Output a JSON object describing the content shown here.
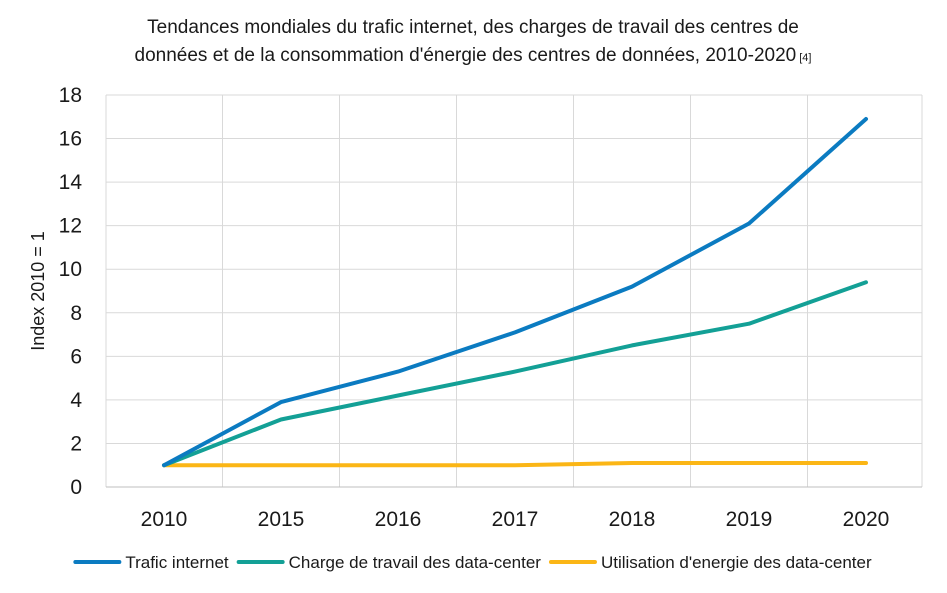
{
  "chart_data": {
    "type": "line",
    "title": {
      "line1": "Tendances mondiales du trafic internet, des charges de travail des centres de",
      "line2": "données et de la consommation d'énergie des centres de données, 2010-2020",
      "ref": "[4]"
    },
    "xlabel": "",
    "ylabel": "Index 2010 = 1",
    "categories": [
      "2010",
      "2015",
      "2016",
      "2017",
      "2018",
      "2019",
      "2020"
    ],
    "ylim": [
      0,
      18
    ],
    "yticks": [
      0,
      2,
      4,
      6,
      8,
      10,
      12,
      14,
      16,
      18
    ],
    "grid": true,
    "legend_position": "bottom",
    "series": [
      {
        "name": "Trafic internet",
        "color": "#0b7bc1",
        "values": [
          1.0,
          3.9,
          5.3,
          7.1,
          9.2,
          12.1,
          16.9
        ]
      },
      {
        "name": "Charge de travail des data-center",
        "color": "#13a096",
        "values": [
          1.0,
          3.1,
          4.2,
          5.3,
          6.5,
          7.5,
          9.4
        ]
      },
      {
        "name": "Utilisation d'energie des data-center",
        "color": "#fbb616",
        "values": [
          1.0,
          1.0,
          1.0,
          1.0,
          1.1,
          1.1,
          1.1
        ]
      }
    ]
  }
}
